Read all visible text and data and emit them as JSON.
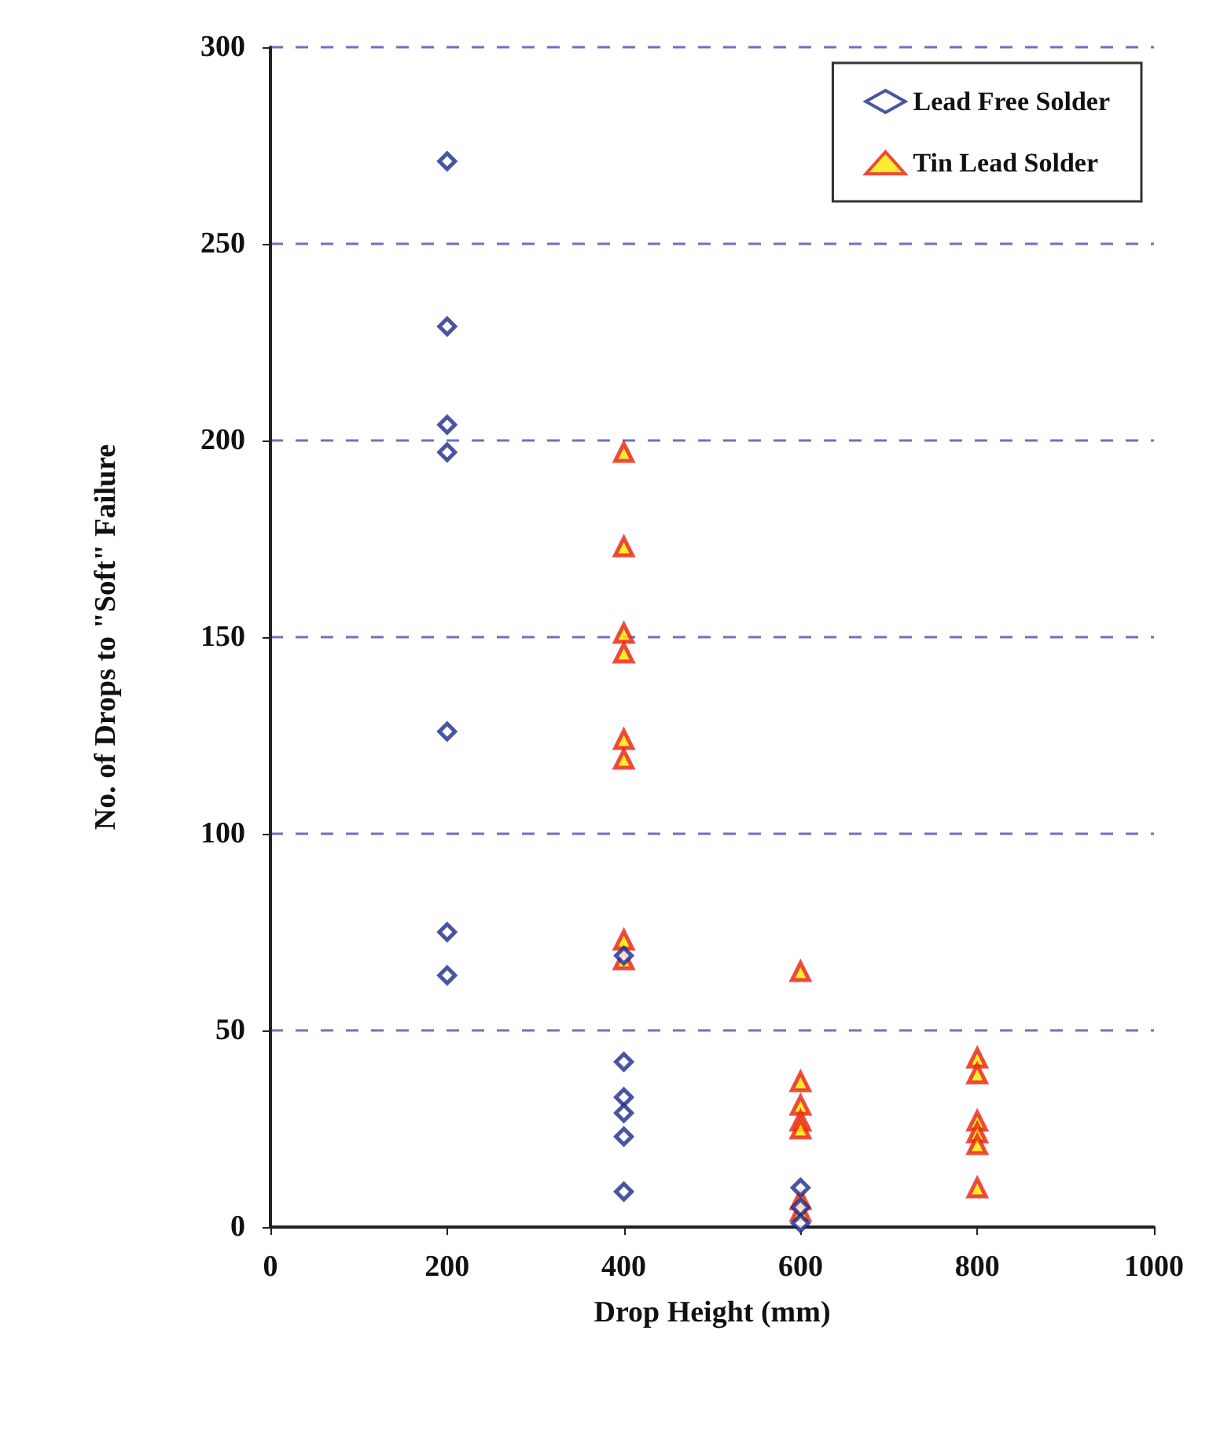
{
  "chart_data": {
    "type": "scatter",
    "xlabel": "Drop Height (mm)",
    "ylabel": "No. of Drops to \"Soft\" Failure",
    "xlim": [
      0,
      1000
    ],
    "xticks": [
      0,
      200,
      400,
      600,
      800,
      1000
    ],
    "ylim": [
      0,
      300
    ],
    "yticks": [
      0,
      50,
      100,
      150,
      200,
      250,
      300
    ],
    "grid": "y",
    "legend": "top right",
    "series": [
      {
        "name": "Lead Free Solder",
        "color": "#1a2a8a",
        "marker": "diamond",
        "x": [
          200,
          200,
          200,
          200,
          200,
          200,
          200,
          400,
          400,
          400,
          400,
          400,
          400,
          600,
          600,
          600
        ],
        "values": [
          271,
          229,
          204,
          197,
          126,
          75,
          64,
          69,
          42,
          33,
          29,
          23,
          9,
          10,
          5,
          1
        ]
      },
      {
        "name": "Tin Lead Solder",
        "color": "#e8201a",
        "marker": "triangle",
        "x": [
          400,
          400,
          400,
          400,
          400,
          400,
          400,
          400,
          600,
          600,
          600,
          600,
          600,
          600,
          600,
          800,
          800,
          800,
          800,
          800,
          800
        ],
        "values": [
          197,
          173,
          151,
          146,
          124,
          119,
          73,
          68,
          65,
          37,
          31,
          27,
          25,
          7,
          4,
          43,
          39,
          27,
          24,
          21,
          10
        ]
      }
    ]
  }
}
